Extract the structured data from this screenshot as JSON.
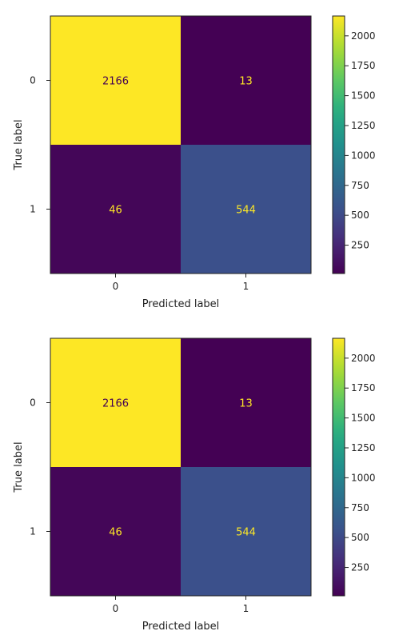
{
  "chart_data": [
    {
      "type": "heatmap",
      "xlabel": "Predicted label",
      "ylabel": "True label",
      "x_categories": [
        "0",
        "1"
      ],
      "y_categories": [
        "0",
        "1"
      ],
      "values": [
        [
          2166,
          13
        ],
        [
          46,
          544
        ]
      ],
      "colormap": "viridis",
      "colorbar": {
        "min": 13,
        "max": 2166,
        "ticks": [
          "250",
          "500",
          "750",
          "1000",
          "1250",
          "1500",
          "1750",
          "2000"
        ]
      },
      "text_colors": {
        "on_dark": "#fde725",
        "on_light": "#440154"
      }
    },
    {
      "type": "heatmap",
      "xlabel": "Predicted label",
      "ylabel": "True label",
      "x_categories": [
        "0",
        "1"
      ],
      "y_categories": [
        "0",
        "1"
      ],
      "values": [
        [
          2166,
          13
        ],
        [
          46,
          544
        ]
      ],
      "colormap": "viridis",
      "colorbar": {
        "min": 13,
        "max": 2166,
        "ticks": [
          "250",
          "500",
          "750",
          "1000",
          "1250",
          "1500",
          "1750",
          "2000"
        ]
      },
      "text_colors": {
        "on_dark": "#fde725",
        "on_light": "#440154"
      }
    }
  ]
}
